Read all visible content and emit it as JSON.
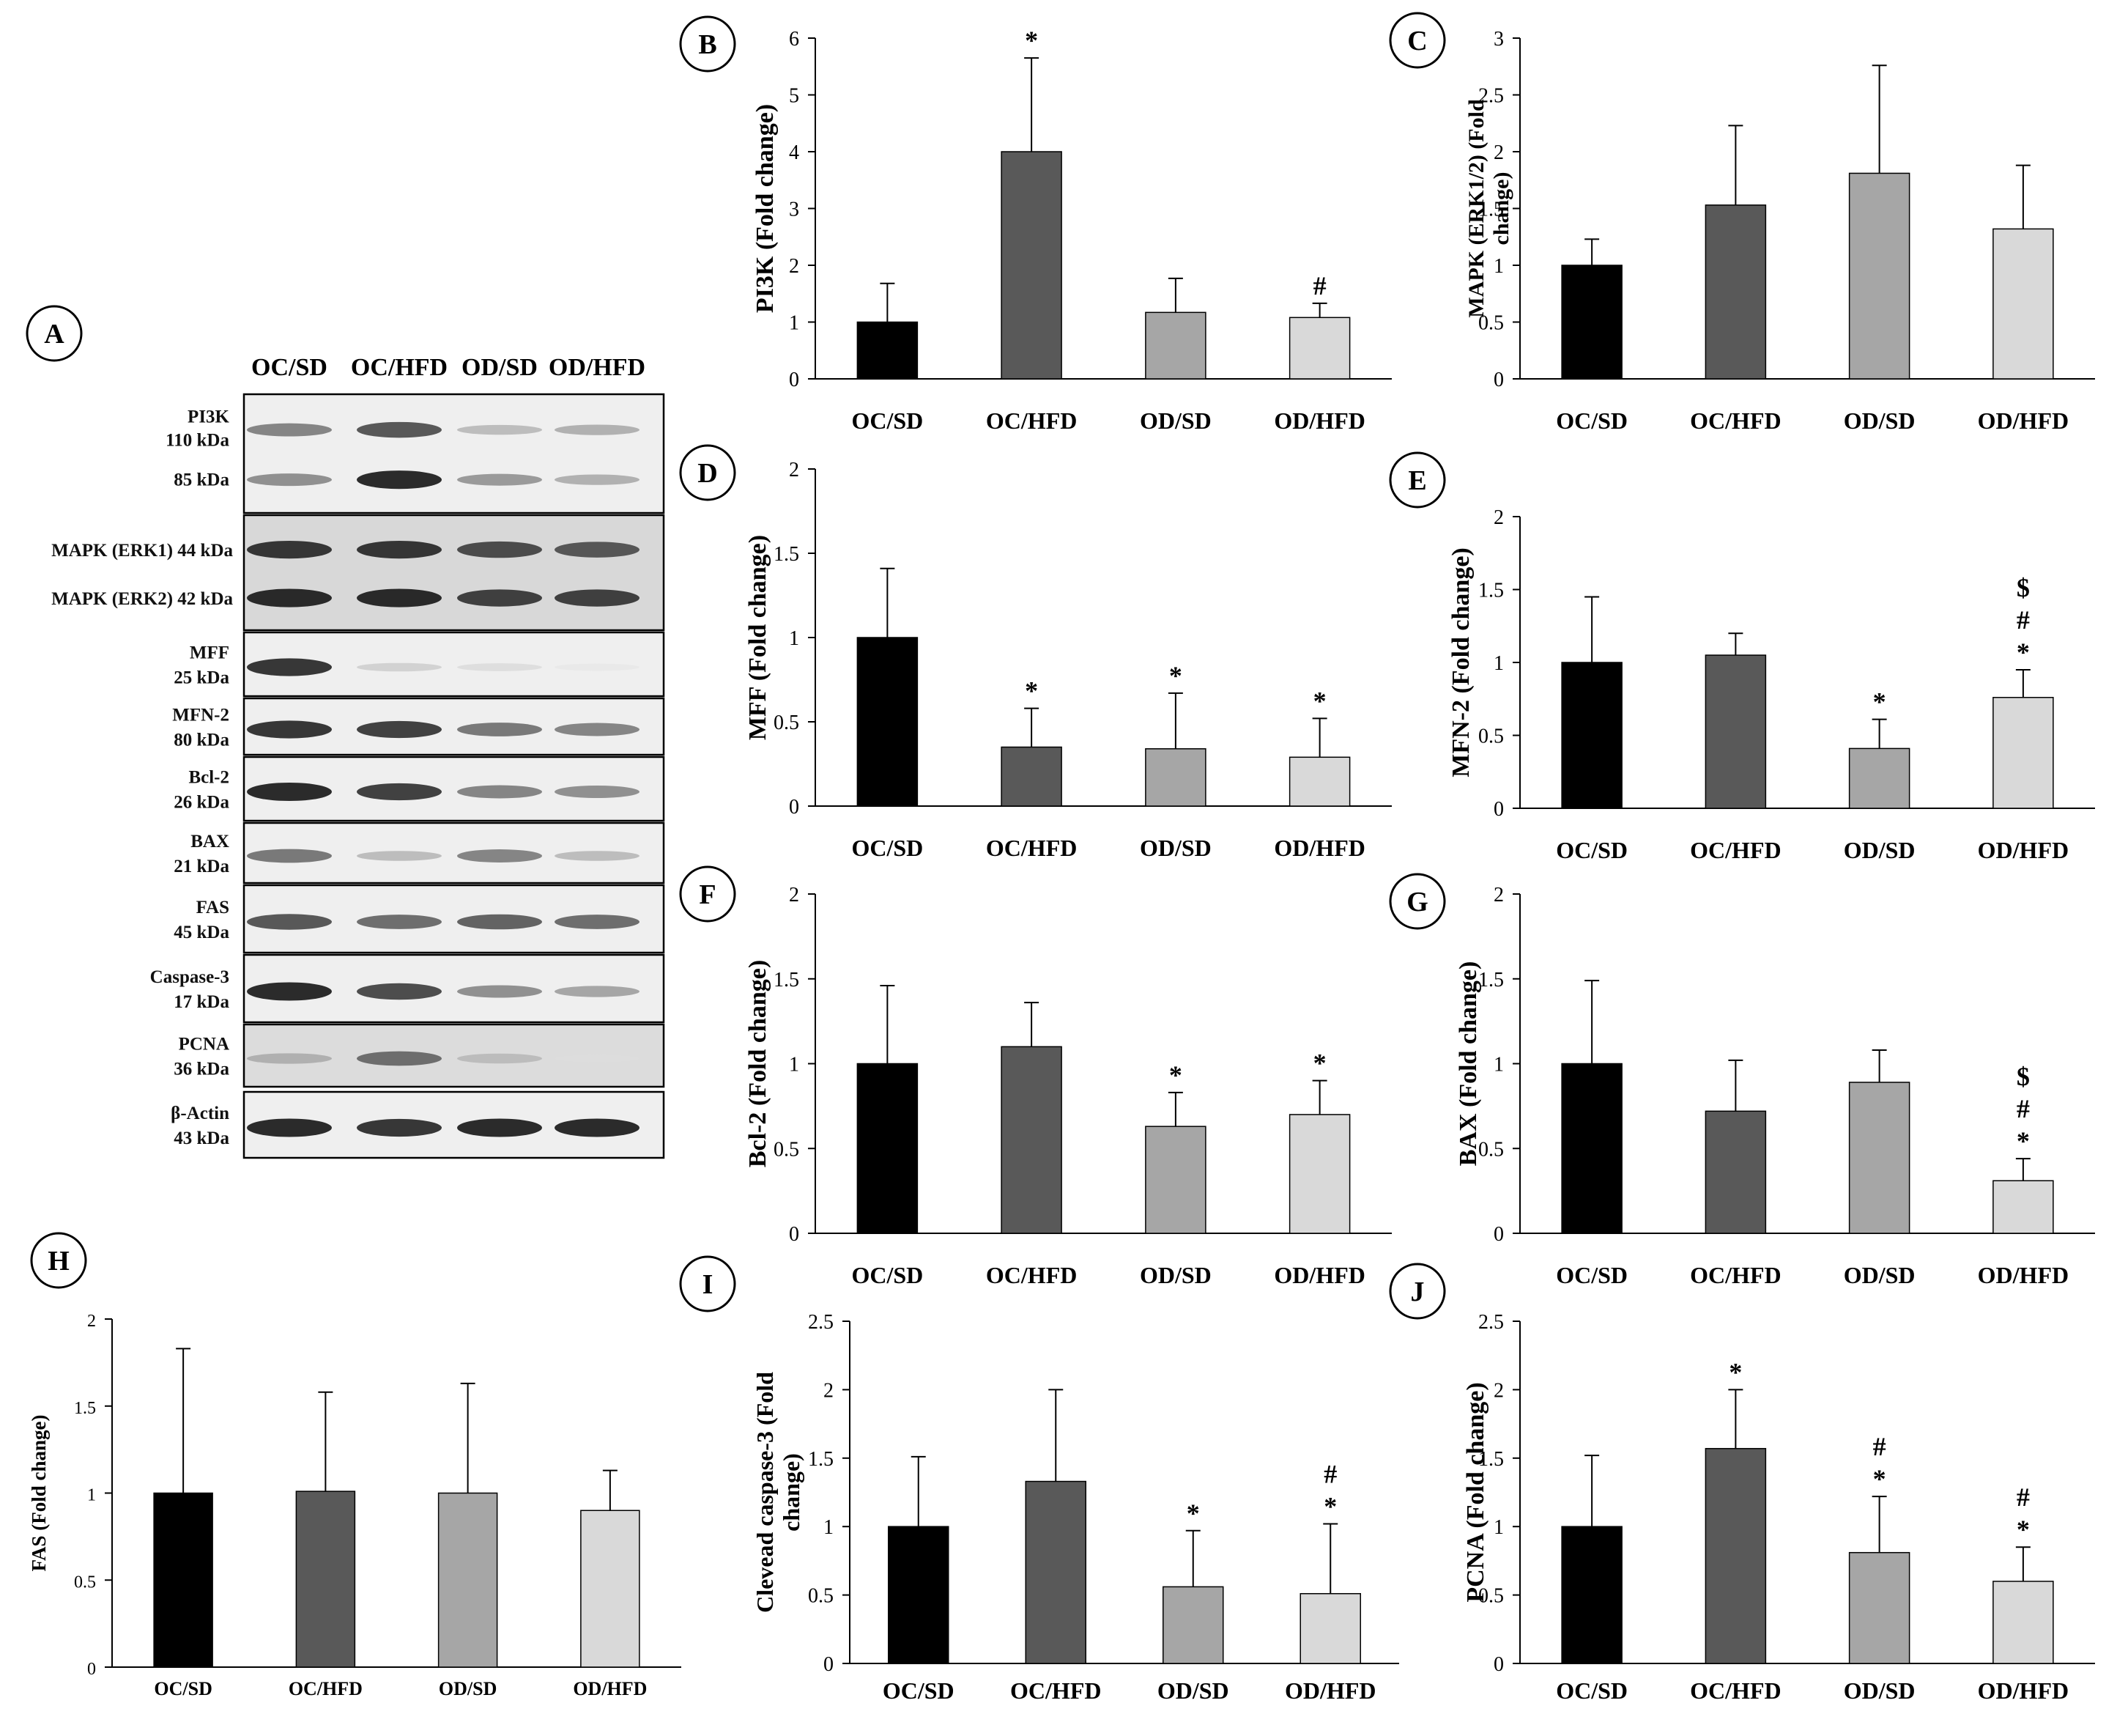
{
  "colors": {
    "OC/SD": "#000000",
    "OC/HFD": "#595959",
    "OD/SD": "#a6a6a6",
    "OD/HFD": "#d9d9d9",
    "axis": "#000000",
    "error": "#000000"
  },
  "blot": {
    "panel_letter": "A",
    "lane_headers": [
      "OC/SD",
      "OC/HFD",
      "OD/SD",
      "OD/HFD"
    ],
    "rows": [
      {
        "name": "PI3K",
        "bands": [
          {
            "label": "PI3K",
            "kda": "110 kDa",
            "intensity": [
              0.55,
              0.75,
              0.3,
              0.35
            ]
          },
          {
            "label": "",
            "kda": "85 kDa",
            "intensity": [
              0.5,
              0.95,
              0.45,
              0.35
            ]
          }
        ]
      },
      {
        "name": "MAPK",
        "bands": [
          {
            "label": "MAPK (ERK1) 44 kDa",
            "kda": "",
            "intensity": [
              0.9,
              0.9,
              0.8,
              0.75
            ]
          },
          {
            "label": "MAPK (ERK2)  42 kDa",
            "kda": "",
            "intensity": [
              0.95,
              0.95,
              0.85,
              0.85
            ]
          }
        ]
      },
      {
        "name": "MFF",
        "bands": [
          {
            "label": "MFF",
            "kda": "25 kDa",
            "intensity": [
              0.9,
              0.2,
              0.15,
              0.1
            ]
          }
        ]
      },
      {
        "name": "MFN-2",
        "bands": [
          {
            "label": "MFN-2",
            "kda": "80 kDa",
            "intensity": [
              0.9,
              0.85,
              0.6,
              0.55
            ]
          }
        ]
      },
      {
        "name": "Bcl-2",
        "bands": [
          {
            "label": "Bcl-2",
            "kda": "26 kDa",
            "intensity": [
              0.95,
              0.85,
              0.55,
              0.5
            ]
          }
        ]
      },
      {
        "name": "BAX",
        "bands": [
          {
            "label": "BAX",
            "kda": "21 kDa",
            "intensity": [
              0.6,
              0.3,
              0.55,
              0.3
            ]
          }
        ]
      },
      {
        "name": "FAS",
        "bands": [
          {
            "label": "FAS",
            "kda": "45 kDa",
            "intensity": [
              0.75,
              0.65,
              0.7,
              0.65
            ]
          }
        ]
      },
      {
        "name": "Caspase-3",
        "bands": [
          {
            "label": "Caspase-3",
            "kda": "17 kDa",
            "intensity": [
              0.95,
              0.8,
              0.5,
              0.4
            ]
          }
        ]
      },
      {
        "name": "PCNA",
        "bands": [
          {
            "label": "PCNA",
            "kda": "36 kDa",
            "intensity": [
              0.35,
              0.65,
              0.3,
              0.15
            ]
          }
        ]
      },
      {
        "name": "β-Actin",
        "bands": [
          {
            "label": "β-Actin",
            "kda": "43 kDa",
            "intensity": [
              0.95,
              0.9,
              0.95,
              0.95
            ]
          }
        ]
      }
    ]
  },
  "chart_data": [
    {
      "panel": "B",
      "type": "bar",
      "ylabel": "PI3K (Fold change)",
      "categories": [
        "OC/SD",
        "OC/HFD",
        "OD/SD",
        "OD/HFD"
      ],
      "values": [
        1.0,
        4.0,
        1.17,
        1.08
      ],
      "errors": [
        0.68,
        1.65,
        0.6,
        0.25
      ],
      "sig": [
        "",
        "*",
        "",
        "#"
      ],
      "ylim": [
        0,
        6
      ],
      "yticks": [
        "0",
        "1",
        "2",
        "3",
        "4",
        "5",
        "6"
      ]
    },
    {
      "panel": "C",
      "type": "bar",
      "ylabel": "MAPK (ERK1/2) (Fold change)",
      "categories": [
        "OC/SD",
        "OC/HFD",
        "OD/SD",
        "OD/HFD"
      ],
      "values": [
        1.0,
        1.53,
        1.81,
        1.32
      ],
      "errors": [
        0.23,
        0.7,
        0.95,
        0.56
      ],
      "sig": [
        "",
        "",
        "",
        ""
      ],
      "ylim": [
        0,
        3
      ],
      "yticks": [
        "0",
        "0.5",
        "1",
        "1.5",
        "2",
        "2.5",
        "3"
      ]
    },
    {
      "panel": "D",
      "type": "bar",
      "ylabel": "MFF (Fold change)",
      "categories": [
        "OC/SD",
        "OC/HFD",
        "OD/SD",
        "OD/HFD"
      ],
      "values": [
        1.0,
        0.35,
        0.34,
        0.29
      ],
      "errors": [
        0.41,
        0.23,
        0.33,
        0.23
      ],
      "sig": [
        "",
        "*",
        "*",
        "*"
      ],
      "ylim": [
        0,
        2
      ],
      "yticks": [
        "0",
        "0.5",
        "1",
        "1.5",
        "2"
      ]
    },
    {
      "panel": "E",
      "type": "bar",
      "ylabel": "MFN-2 (Fold change)",
      "categories": [
        "OC/SD",
        "OC/HFD",
        "OD/SD",
        "OD/HFD"
      ],
      "values": [
        1.0,
        1.05,
        0.41,
        0.76
      ],
      "errors": [
        0.45,
        0.15,
        0.2,
        0.19
      ],
      "sig": [
        "",
        "",
        "*",
        "*\n#\n$"
      ],
      "ylim": [
        0,
        2
      ],
      "yticks": [
        "0",
        "0.5",
        "1",
        "1.5",
        "2"
      ]
    },
    {
      "panel": "F",
      "type": "bar",
      "ylabel": "Bcl-2 (Fold  change)",
      "categories": [
        "OC/SD",
        "OC/HFD",
        "OD/SD",
        "OD/HFD"
      ],
      "values": [
        1.0,
        1.1,
        0.63,
        0.7
      ],
      "errors": [
        0.46,
        0.26,
        0.2,
        0.2
      ],
      "sig": [
        "",
        "",
        "*",
        "*"
      ],
      "ylim": [
        0,
        2
      ],
      "yticks": [
        "0",
        "0.5",
        "1",
        "1.5",
        "2"
      ]
    },
    {
      "panel": "G",
      "type": "bar",
      "ylabel": "BAX (Fold change)",
      "categories": [
        "OC/SD",
        "OC/HFD",
        "OD/SD",
        "OD/HFD"
      ],
      "values": [
        1.0,
        0.72,
        0.89,
        0.31
      ],
      "errors": [
        0.49,
        0.3,
        0.19,
        0.13
      ],
      "sig": [
        "",
        "",
        "",
        "*\n#\n$"
      ],
      "ylim": [
        0,
        2
      ],
      "yticks": [
        "0",
        "0.5",
        "1",
        "1.5",
        "2"
      ]
    },
    {
      "panel": "H",
      "type": "bar",
      "ylabel": "FAS (Fold change)",
      "categories": [
        "OC/SD",
        "OC/HFD",
        "OD/SD",
        "OD/HFD"
      ],
      "values": [
        1.0,
        1.01,
        1.0,
        0.9
      ],
      "errors": [
        0.83,
        0.57,
        0.63,
        0.23
      ],
      "sig": [
        "",
        "",
        "",
        ""
      ],
      "ylim": [
        0,
        2
      ],
      "yticks": [
        "0",
        "0.5",
        "1",
        "1.5",
        "2"
      ]
    },
    {
      "panel": "I",
      "type": "bar",
      "ylabel": "Clevead caspase-3 (Fold change)",
      "categories": [
        "OC/SD",
        "OC/HFD",
        "OD/SD",
        "OD/HFD"
      ],
      "values": [
        1.0,
        1.33,
        0.56,
        0.51
      ],
      "errors": [
        0.51,
        0.67,
        0.41,
        0.51
      ],
      "sig": [
        "",
        "",
        "*",
        "*\n#"
      ],
      "ylim": [
        0,
        2.5
      ],
      "yticks": [
        "0",
        "0.5",
        "1",
        "1.5",
        "2",
        "2.5"
      ]
    },
    {
      "panel": "J",
      "type": "bar",
      "ylabel": "PCNA (Fold change)",
      "categories": [
        "OC/SD",
        "OC/HFD",
        "OD/SD",
        "OD/HFD"
      ],
      "values": [
        1.0,
        1.57,
        0.81,
        0.6
      ],
      "errors": [
        0.52,
        0.43,
        0.41,
        0.25
      ],
      "sig": [
        "",
        "*",
        "*\n#",
        "*\n#"
      ],
      "ylim": [
        0,
        2.5
      ],
      "yticks": [
        "0",
        "0.5",
        "1",
        "1.5",
        "2",
        "2.5"
      ]
    }
  ]
}
